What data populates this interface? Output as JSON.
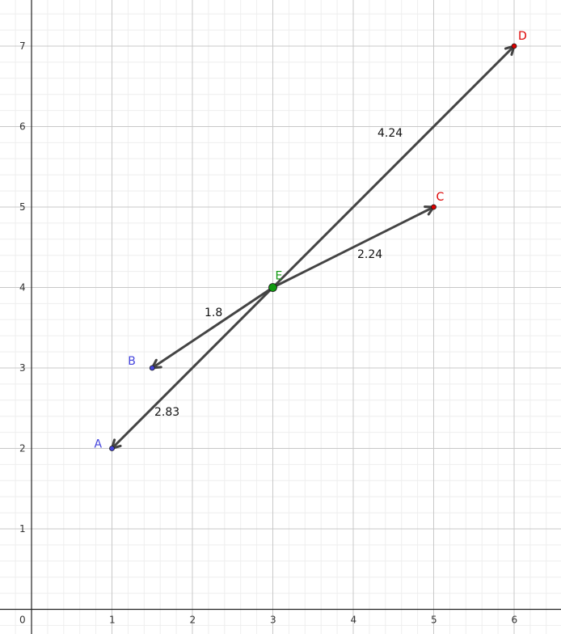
{
  "axes": {
    "x_ticks": [
      "0",
      "1",
      "2",
      "3",
      "4",
      "5",
      "6"
    ],
    "y_ticks": [
      "1",
      "2",
      "3",
      "4",
      "5",
      "6",
      "7"
    ]
  },
  "points": {
    "A": {
      "label": "A",
      "x": 1,
      "y": 2,
      "color": "#4444dd"
    },
    "B": {
      "label": "B",
      "x": 1.5,
      "y": 3,
      "color": "#4444dd"
    },
    "C": {
      "label": "C",
      "x": 5,
      "y": 5,
      "color": "#dd0000"
    },
    "D": {
      "label": "D",
      "x": 6,
      "y": 7,
      "color": "#dd0000"
    },
    "E": {
      "label": "E",
      "x": 3,
      "y": 4,
      "color": "#119911"
    }
  },
  "vectors": [
    {
      "from": "E",
      "to": "A",
      "length_label": "2.83"
    },
    {
      "from": "E",
      "to": "B",
      "length_label": "1.8"
    },
    {
      "from": "E",
      "to": "C",
      "length_label": "2.24"
    },
    {
      "from": "E",
      "to": "D",
      "length_label": "4.24"
    }
  ],
  "colors": {
    "vector": "#444444",
    "grid_major": "#c8c8c8",
    "grid_minor": "#eeeeee",
    "axis": "#222222"
  }
}
